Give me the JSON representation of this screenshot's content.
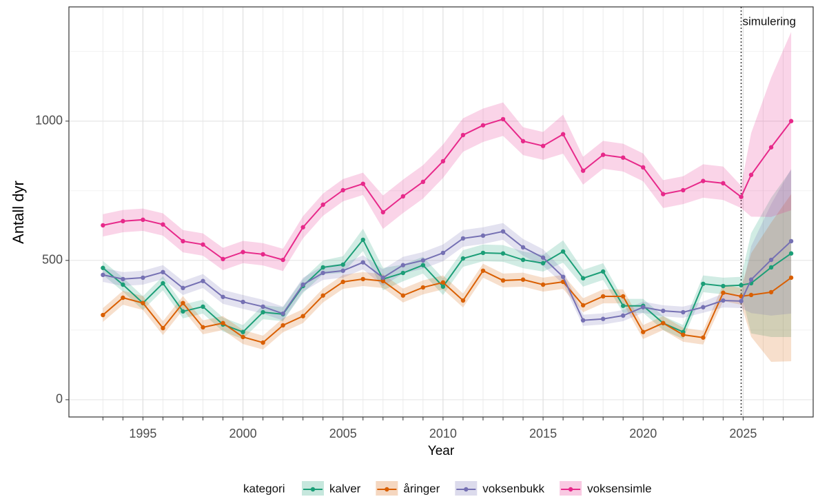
{
  "chart_data": {
    "type": "line",
    "y_label": "Antall dyr",
    "x_label": "Year",
    "legend_title": "kategori",
    "annotation": "simulering",
    "vline": 2024.9,
    "x": [
      1993,
      1994,
      1995,
      1996,
      1997,
      1998,
      1999,
      2000,
      2001,
      2002,
      2003,
      2004,
      2005,
      2006,
      2007,
      2008,
      2009,
      2010,
      2011,
      2012,
      2013,
      2014,
      2015,
      2016,
      2017,
      2018,
      2019,
      2020,
      2021,
      2022,
      2023,
      2024,
      2024.9,
      2025.4,
      2026.4,
      2027.4
    ],
    "series": [
      {
        "name": "kalver",
        "color": "#1b9e77",
        "values": [
          473,
          413,
          347,
          418,
          317,
          334,
          270,
          243,
          314,
          307,
          408,
          475,
          485,
          574,
          433,
          455,
          483,
          406,
          507,
          527,
          525,
          502,
          490,
          532,
          436,
          460,
          337,
          337,
          275,
          243,
          416,
          408,
          411,
          418,
          475,
          525
        ],
        "errors": [
          25,
          25,
          25,
          25,
          25,
          25,
          25,
          25,
          25,
          25,
          25,
          25,
          30,
          40,
          40,
          30,
          30,
          30,
          30,
          30,
          30,
          30,
          30,
          40,
          30,
          30,
          25,
          25,
          25,
          25,
          30,
          30,
          30,
          180,
          250,
          300
        ]
      },
      {
        "name": "åringer",
        "color": "#d95f02",
        "values": [
          304,
          366,
          347,
          257,
          347,
          260,
          275,
          225,
          205,
          267,
          300,
          374,
          423,
          433,
          426,
          374,
          403,
          421,
          356,
          463,
          428,
          431,
          413,
          423,
          339,
          371,
          371,
          243,
          275,
          233,
          223,
          384,
          371,
          376,
          386,
          438
        ],
        "errors": [
          25,
          25,
          25,
          25,
          25,
          25,
          25,
          25,
          25,
          25,
          25,
          25,
          25,
          25,
          25,
          25,
          25,
          25,
          25,
          25,
          25,
          25,
          25,
          25,
          25,
          25,
          25,
          25,
          25,
          25,
          25,
          30,
          30,
          150,
          250,
          300
        ]
      },
      {
        "name": "voksenbukk",
        "color": "#7570b3",
        "values": [
          448,
          433,
          438,
          458,
          401,
          426,
          369,
          351,
          334,
          309,
          413,
          455,
          463,
          493,
          438,
          483,
          500,
          527,
          579,
          589,
          604,
          547,
          510,
          441,
          285,
          290,
          302,
          332,
          319,
          314,
          332,
          356,
          354,
          431,
          502,
          569
        ],
        "errors": [
          25,
          25,
          25,
          25,
          25,
          25,
          25,
          25,
          25,
          25,
          25,
          25,
          25,
          25,
          30,
          30,
          30,
          30,
          30,
          30,
          30,
          30,
          30,
          25,
          20,
          20,
          20,
          20,
          20,
          20,
          20,
          25,
          25,
          120,
          200,
          260
        ]
      },
      {
        "name": "voksensimle",
        "color": "#e7298a",
        "values": [
          626,
          641,
          646,
          629,
          569,
          557,
          505,
          530,
          522,
          502,
          619,
          700,
          752,
          775,
          673,
          730,
          782,
          856,
          950,
          985,
          1007,
          928,
          911,
          953,
          822,
          879,
          869,
          834,
          738,
          752,
          785,
          777,
          728,
          807,
          906,
          1000
        ],
        "errors": [
          40,
          40,
          40,
          40,
          40,
          40,
          40,
          40,
          40,
          40,
          40,
          40,
          40,
          40,
          60,
          60,
          60,
          60,
          60,
          60,
          60,
          50,
          50,
          70,
          50,
          50,
          50,
          50,
          50,
          50,
          60,
          60,
          40,
          150,
          250,
          320
        ]
      }
    ],
    "xlim": [
      1991.3,
      2028.5
    ],
    "ylim": [
      -62,
      1410
    ],
    "xticks": [
      1995,
      2000,
      2005,
      2010,
      2015,
      2020,
      2025
    ],
    "minor_xticks": [
      1993,
      1994,
      1995,
      1996,
      1997,
      1998,
      1999,
      2000,
      2001,
      2002,
      2003,
      2004,
      2005,
      2006,
      2007,
      2008,
      2009,
      2010,
      2011,
      2012,
      2013,
      2014,
      2015,
      2016,
      2017,
      2018,
      2019,
      2020,
      2021,
      2022,
      2023,
      2024,
      2025,
      2026,
      2027
    ],
    "yticks": [
      0,
      500,
      1000
    ],
    "minor_yticks": [
      250,
      750,
      1250
    ],
    "grid": true
  }
}
